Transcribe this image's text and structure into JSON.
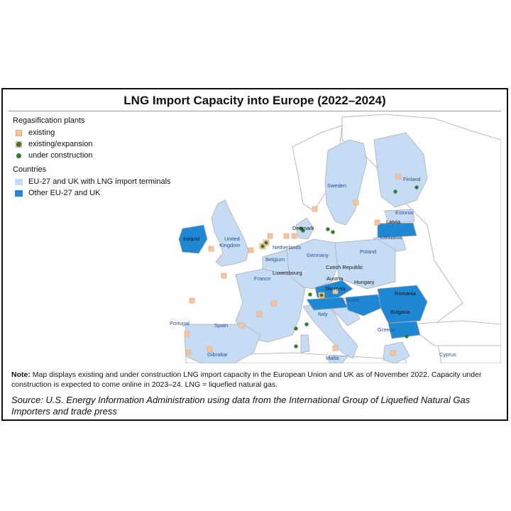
{
  "title": "LNG Import Capacity into Europe (2022–2024)",
  "legend": {
    "plants_heading": "Regasification plants",
    "existing": "existing",
    "expansion": "existing/expansion",
    "construction": "under construction",
    "countries_heading": "Countries",
    "with_terminals": "EU-27 and UK with LNG import terminals",
    "other": "Other EU-27 and UK"
  },
  "countries": {
    "ireland": "Ireland",
    "uk": "United Kingdom",
    "netherlands": "Netherlands",
    "belgium": "Belgium",
    "luxembourg": "Luxembourg",
    "france": "France",
    "spain": "Spain",
    "portugal": "Portugal",
    "gibraltar": "Gibraltar",
    "italy": "Italy",
    "malta": "Malta",
    "germany": "Germany",
    "denmark": "Denmark",
    "poland": "Poland",
    "czech": "Czech Republic",
    "austria": "Austria",
    "slovenia": "Slovenia",
    "croatia": "Croatia",
    "hungary": "Hungary",
    "romania": "Romania",
    "bulgaria": "Bulgaria",
    "greece": "Greece",
    "cyprus": "Cyprus",
    "sweden": "Sweden",
    "finland": "Finland",
    "estonia": "Estonia",
    "latvia": "Latvia",
    "lithuania": "Lithuania"
  },
  "note": {
    "label": "Note:",
    "text": " Map displays existing and under construction LNG import capacity in the European Union and UK as of November 2022. Capacity under construction is expected to come online in 2023–24. LNG = liquefied natural gas."
  },
  "source": "Source: U.S. Energy Information Administration using data from the International Group of Liquefied Natural Gas Importers and trade press",
  "colors": {
    "with_terminals": "#c6dcf5",
    "other": "#1e88d4",
    "non_eu": "#ffffff",
    "sea": "#ffffff",
    "border": "#a9a9a9",
    "existing": "#f7c59f",
    "construction": "#2e7d32"
  }
}
